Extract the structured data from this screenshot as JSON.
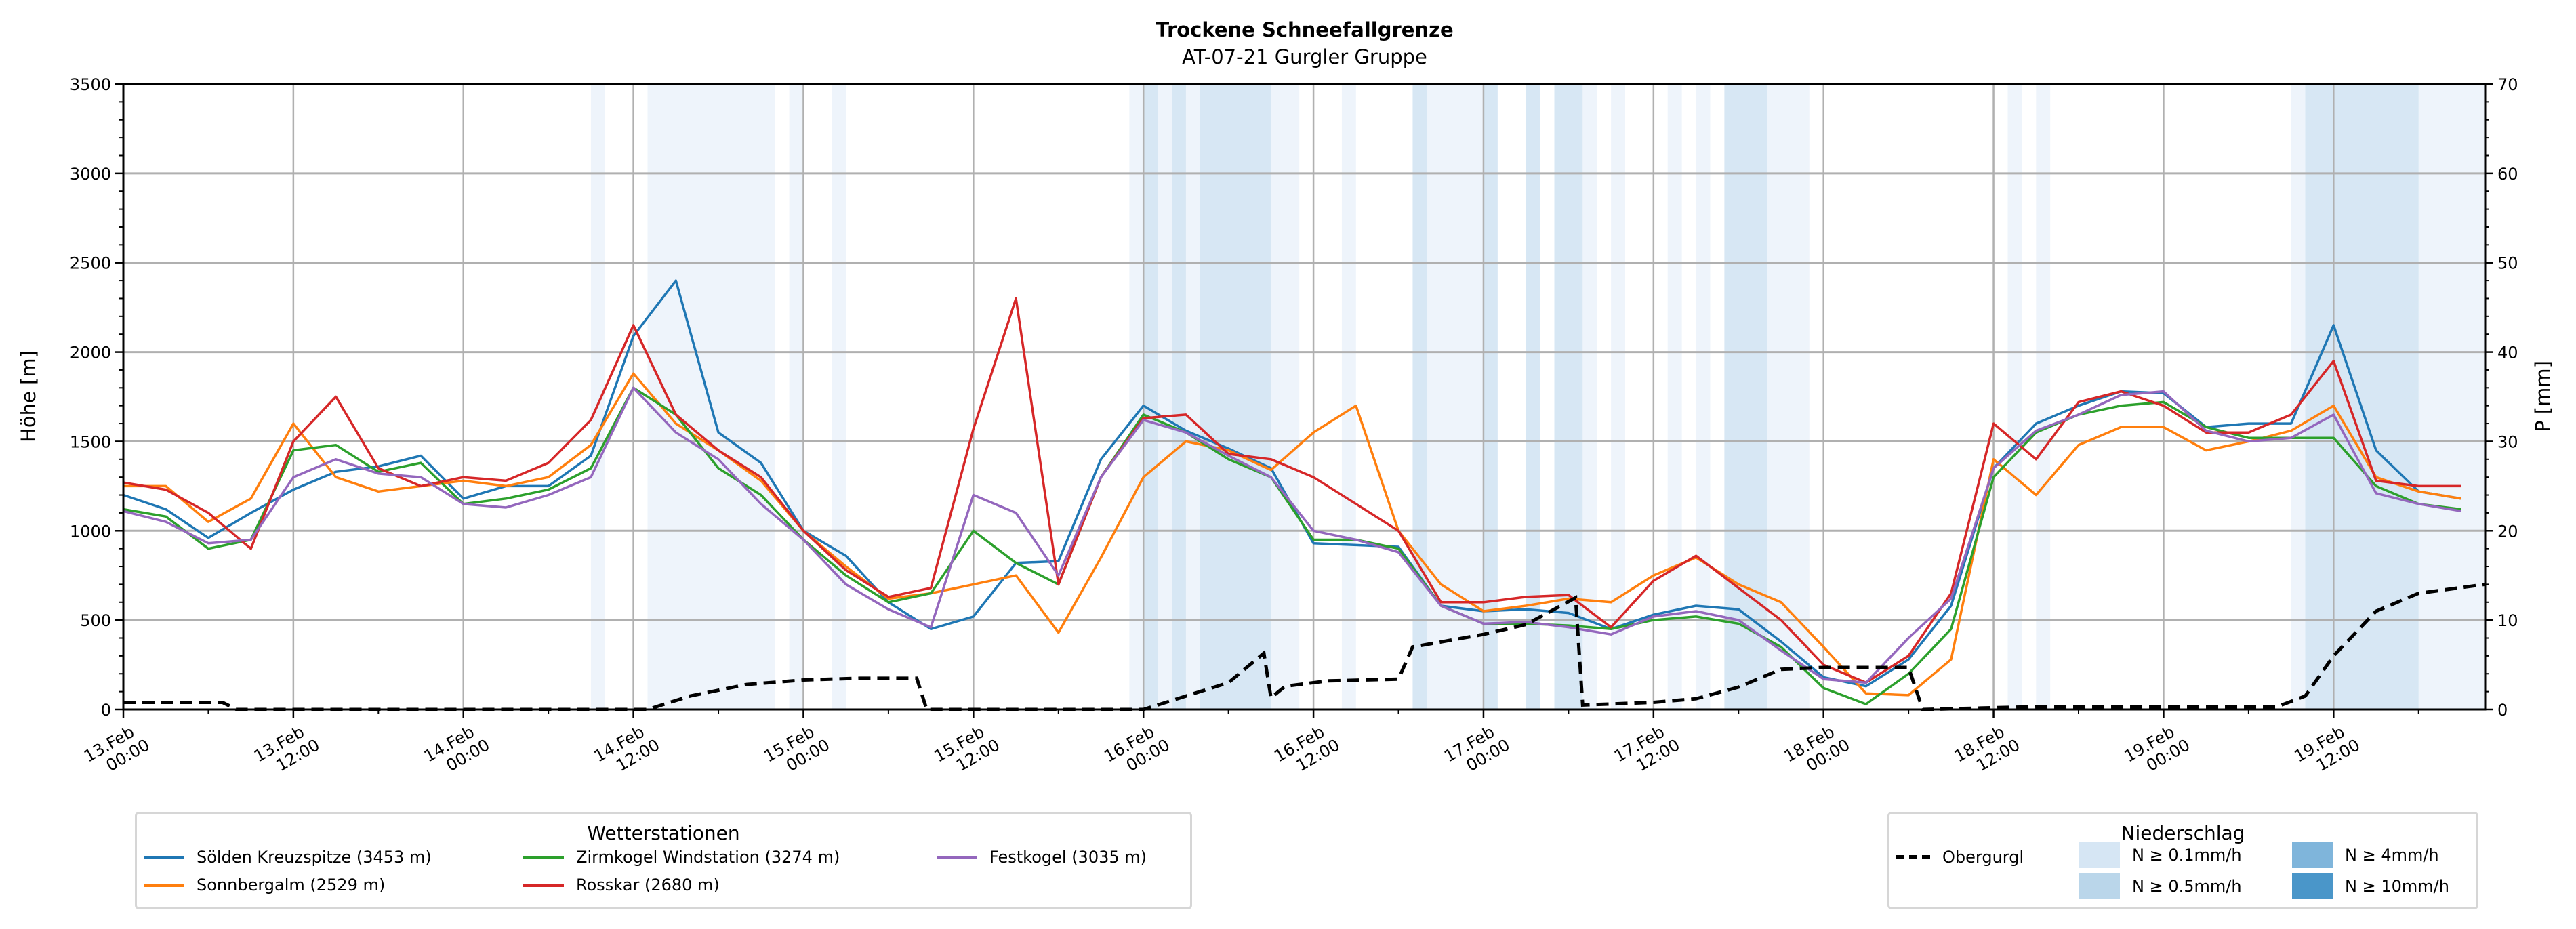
{
  "chart_data": {
    "type": "line",
    "title": "Trockene Schneefallgrenze",
    "subtitle": "AT-07-21 Gurgler Gruppe",
    "ylabel": "Höhe [m]",
    "ylabel_right": "P [mm]",
    "ylim": [
      0,
      3500
    ],
    "ylim_right": [
      0,
      70
    ],
    "x_unit": "hours since 13.Feb 00:00",
    "xlim": [
      0,
      166.7
    ],
    "grid": true,
    "yticks": [
      "0",
      "500",
      "1000",
      "1500",
      "2000",
      "2500",
      "3000",
      "3500"
    ],
    "yticks_right": [
      "0",
      "10",
      "20",
      "30",
      "40",
      "50",
      "60",
      "70"
    ],
    "xticks": [
      {
        "t": 0,
        "date": "13.Feb",
        "time": "00:00"
      },
      {
        "t": 12,
        "date": "13.Feb",
        "time": "12:00"
      },
      {
        "t": 24,
        "date": "14.Feb",
        "time": "00:00"
      },
      {
        "t": 36,
        "date": "14.Feb",
        "time": "12:00"
      },
      {
        "t": 48,
        "date": "15.Feb",
        "time": "00:00"
      },
      {
        "t": 60,
        "date": "15.Feb",
        "time": "12:00"
      },
      {
        "t": 72,
        "date": "16.Feb",
        "time": "00:00"
      },
      {
        "t": 84,
        "date": "16.Feb",
        "time": "12:00"
      },
      {
        "t": 96,
        "date": "17.Feb",
        "time": "00:00"
      },
      {
        "t": 108,
        "date": "17.Feb",
        "time": "12:00"
      },
      {
        "t": 120,
        "date": "18.Feb",
        "time": "00:00"
      },
      {
        "t": 132,
        "date": "18.Feb",
        "time": "12:00"
      },
      {
        "t": 144,
        "date": "19.Feb",
        "time": "00:00"
      },
      {
        "t": 156,
        "date": "19.Feb",
        "time": "12:00"
      }
    ],
    "x": [
      0,
      3,
      6,
      9,
      12,
      15,
      18,
      21,
      24,
      27,
      30,
      33,
      36,
      39,
      42,
      45,
      48,
      51,
      54,
      57,
      60,
      63,
      66,
      69,
      72,
      75,
      78,
      81,
      84,
      87,
      90,
      93,
      96,
      99,
      102,
      105,
      108,
      111,
      114,
      117,
      120,
      123,
      126,
      129,
      132,
      135,
      138,
      141,
      144,
      147,
      150,
      153,
      156,
      159,
      162,
      165
    ],
    "series": [
      {
        "name": "Sölden Kreuzspitze (3453 m)",
        "color": "#1f77b4",
        "values": [
          1200,
          1120,
          960,
          1100,
          1230,
          1330,
          1360,
          1420,
          1180,
          1250,
          1250,
          1420,
          2090,
          2400,
          1550,
          1380,
          1000,
          860,
          600,
          450,
          520,
          820,
          830,
          1400,
          1700,
          1560,
          1460,
          1350,
          930,
          920,
          910,
          580,
          550,
          560,
          540,
          450,
          530,
          580,
          560,
          380,
          180,
          130,
          280,
          580,
          1350,
          1600,
          1700,
          1780,
          1770,
          1580,
          1600,
          1600,
          2150,
          1450,
          1220,
          1180
        ]
      },
      {
        "name": "Sonnbergalm (2529 m)",
        "color": "#ff7f0e",
        "values": [
          1250,
          1250,
          1050,
          1180,
          1600,
          1300,
          1220,
          1250,
          1280,
          1250,
          1300,
          1480,
          1880,
          1600,
          1450,
          1280,
          1000,
          800,
          620,
          650,
          700,
          750,
          430,
          850,
          1300,
          1500,
          1450,
          1340,
          1550,
          1700,
          1000,
          700,
          550,
          580,
          620,
          600,
          750,
          850,
          700,
          600,
          350,
          90,
          80,
          280,
          1400,
          1200,
          1480,
          1580,
          1580,
          1450,
          1500,
          1560,
          1700,
          1300,
          1220,
          1180
        ]
      },
      {
        "name": "Zirmkogel Windstation (3274 m)",
        "color": "#2ca02c",
        "values": [
          1120,
          1080,
          900,
          950,
          1450,
          1480,
          1330,
          1380,
          1150,
          1180,
          1230,
          1350,
          1800,
          1650,
          1350,
          1200,
          950,
          750,
          600,
          650,
          1000,
          820,
          700,
          1300,
          1650,
          1550,
          1400,
          1300,
          950,
          950,
          900,
          580,
          480,
          480,
          470,
          450,
          500,
          520,
          480,
          350,
          120,
          30,
          200,
          450,
          1300,
          1550,
          1650,
          1700,
          1720,
          1580,
          1520,
          1520,
          1520,
          1250,
          1150,
          1120
        ]
      },
      {
        "name": "Rosskar (2680 m)",
        "color": "#d62728",
        "values": [
          1270,
          1230,
          1100,
          900,
          1500,
          1750,
          1350,
          1250,
          1300,
          1280,
          1380,
          1620,
          2150,
          1650,
          1450,
          1300,
          1000,
          780,
          630,
          680,
          1570,
          2300,
          700,
          1300,
          1630,
          1650,
          1430,
          1400,
          1300,
          1150,
          1000,
          600,
          600,
          630,
          640,
          460,
          720,
          860,
          680,
          500,
          250,
          150,
          300,
          650,
          1600,
          1400,
          1720,
          1780,
          1700,
          1550,
          1550,
          1650,
          1950,
          1280,
          1250,
          1250
        ]
      },
      {
        "name": "Festkogel (3035 m)",
        "color": "#9467bd",
        "values": [
          1110,
          1050,
          930,
          950,
          1300,
          1400,
          1320,
          1300,
          1150,
          1130,
          1200,
          1300,
          1800,
          1550,
          1400,
          1150,
          950,
          700,
          560,
          460,
          1200,
          1100,
          750,
          1300,
          1620,
          1550,
          1420,
          1300,
          1000,
          950,
          880,
          580,
          480,
          490,
          460,
          420,
          520,
          550,
          500,
          330,
          170,
          150,
          400,
          620,
          1350,
          1560,
          1650,
          1760,
          1780,
          1560,
          1500,
          1520,
          1650,
          1210,
          1150,
          1110
        ]
      }
    ],
    "precip_series": {
      "name": "Obergurgl",
      "color": "#000000",
      "axis": "right",
      "points": [
        [
          0,
          0.8
        ],
        [
          7,
          0.8
        ],
        [
          8,
          0
        ],
        [
          37,
          0
        ],
        [
          40,
          1.5
        ],
        [
          44,
          2.8
        ],
        [
          48,
          3.3
        ],
        [
          52,
          3.5
        ],
        [
          56,
          3.5
        ],
        [
          56.7,
          0
        ],
        [
          72,
          0
        ],
        [
          75,
          1.5
        ],
        [
          78,
          3
        ],
        [
          80.5,
          6.3
        ],
        [
          81,
          1.3
        ],
        [
          82,
          2.6
        ],
        [
          85,
          3.2
        ],
        [
          90,
          3.4
        ],
        [
          91,
          7
        ],
        [
          96,
          8.4
        ],
        [
          99,
          9.5
        ],
        [
          102.5,
          12.5
        ],
        [
          103,
          0.5
        ],
        [
          108,
          0.8
        ],
        [
          111,
          1.2
        ],
        [
          114,
          2.5
        ],
        [
          117,
          4.5
        ],
        [
          120,
          4.7
        ],
        [
          126,
          4.7
        ],
        [
          127,
          0
        ],
        [
          132,
          0.2
        ],
        [
          135,
          0.3
        ],
        [
          152,
          0.3
        ],
        [
          154,
          1.5
        ],
        [
          156,
          6
        ],
        [
          159,
          11
        ],
        [
          162,
          13
        ],
        [
          166.7,
          14
        ]
      ]
    },
    "precip_bands": {
      "light": [
        [
          33,
          34
        ],
        [
          37,
          46
        ],
        [
          47,
          48
        ],
        [
          50,
          51
        ],
        [
          71,
          72
        ],
        [
          73,
          74
        ],
        [
          75,
          76
        ],
        [
          81,
          83
        ],
        [
          86,
          87
        ],
        [
          92,
          96
        ],
        [
          103,
          104
        ],
        [
          105,
          106
        ],
        [
          109,
          110
        ],
        [
          111,
          112
        ],
        [
          116,
          119
        ],
        [
          133,
          134
        ],
        [
          135,
          136
        ],
        [
          153,
          154
        ],
        [
          162,
          166.7
        ]
      ],
      "medium": [
        [
          72,
          73
        ],
        [
          74,
          75
        ],
        [
          76,
          81
        ],
        [
          91,
          92
        ],
        [
          96,
          97
        ],
        [
          99,
          100
        ],
        [
          101,
          103
        ],
        [
          113,
          116
        ],
        [
          154,
          162
        ]
      ]
    },
    "legend_stations": {
      "title": "Wetterstationen",
      "placement": "bottom-left"
    },
    "legend_precip": {
      "title": "Niederschlag",
      "placement": "bottom-right",
      "line_label": "Obergurgl",
      "classes": [
        {
          "label": "N ≥ 0.1mm/h",
          "color": "#d6e6f4"
        },
        {
          "label": "N ≥ 0.5mm/h",
          "color": "#bad6ea"
        },
        {
          "label": "N ≥ 4mm/h",
          "color": "#7fb5db"
        },
        {
          "label": "N ≥ 10mm/h",
          "color": "#4a96c9"
        }
      ]
    },
    "band_colors": {
      "light": "#eef4fb",
      "medium": "#d7e7f4"
    }
  }
}
